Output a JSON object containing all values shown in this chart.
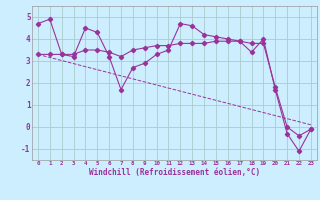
{
  "background_color": "#cceeff",
  "grid_color": "#aacccc",
  "line_color": "#993399",
  "text_color": "#993399",
  "xlim": [
    -0.5,
    23.5
  ],
  "ylim": [
    -1.5,
    5.5
  ],
  "yticks": [
    -1,
    0,
    1,
    2,
    3,
    4,
    5
  ],
  "xtick_labels": [
    "0",
    "1",
    "2",
    "3",
    "4",
    "5",
    "6",
    "7",
    "8",
    "9",
    "10",
    "11",
    "12",
    "13",
    "14",
    "15",
    "16",
    "17",
    "18",
    "19",
    "20",
    "21",
    "22",
    "23"
  ],
  "xlabel": "Windchill (Refroidissement éolien,°C)",
  "series1_x": [
    0,
    1,
    2,
    3,
    4,
    5,
    6,
    7,
    8,
    9,
    10,
    11,
    12,
    13,
    14,
    15,
    16,
    17,
    18,
    19,
    20,
    21,
    22,
    23
  ],
  "series1_y": [
    4.7,
    4.9,
    3.3,
    3.2,
    4.5,
    4.3,
    3.2,
    1.7,
    2.7,
    2.9,
    3.3,
    3.5,
    4.7,
    4.6,
    4.2,
    4.1,
    4.0,
    3.9,
    3.4,
    4.0,
    1.7,
    -0.3,
    -1.1,
    -0.1
  ],
  "series2_x": [
    0,
    1,
    2,
    3,
    4,
    5,
    6,
    7,
    8,
    9,
    10,
    11,
    12,
    13,
    14,
    15,
    16,
    17,
    18,
    19,
    20,
    21,
    22,
    23
  ],
  "series2_y": [
    3.3,
    3.3,
    3.3,
    3.3,
    3.5,
    3.5,
    3.4,
    3.2,
    3.5,
    3.6,
    3.7,
    3.7,
    3.8,
    3.8,
    3.8,
    3.9,
    3.9,
    3.9,
    3.8,
    3.8,
    1.8,
    0.0,
    -0.4,
    -0.1
  ],
  "series3_x": [
    0,
    23
  ],
  "series3_y": [
    3.3,
    0.1
  ]
}
